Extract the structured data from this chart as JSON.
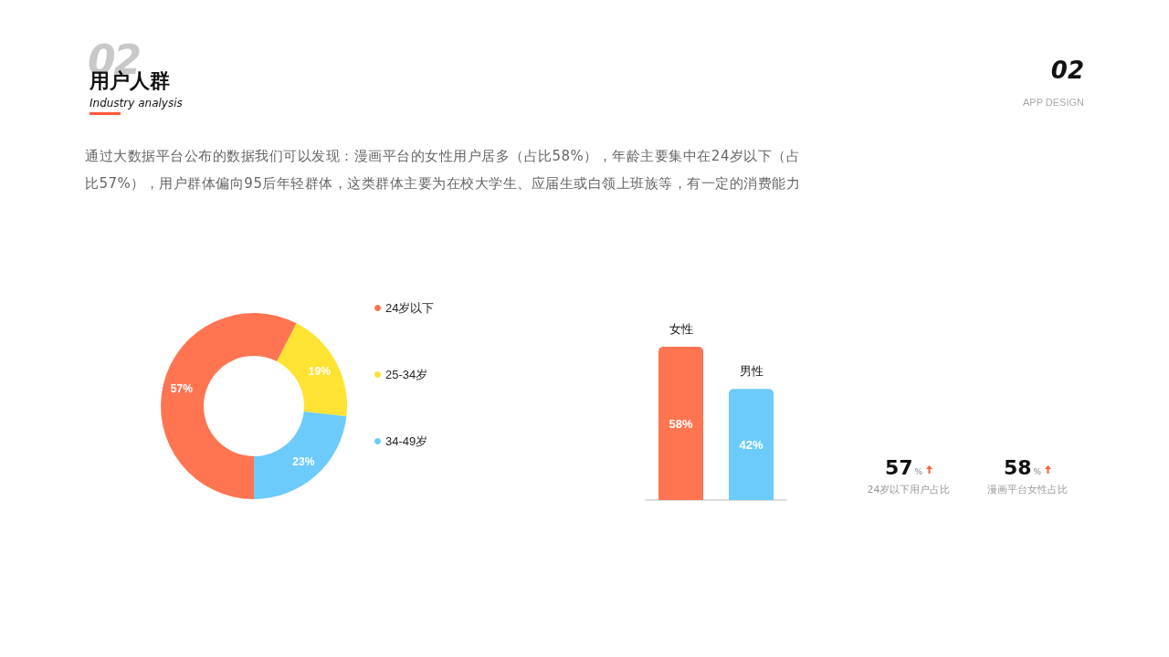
{
  "chart_data": [
    {
      "type": "donut",
      "title": "用户人群",
      "subtitle": "Industry analysis",
      "annotations": [
        "02",
        "02",
        "APP DESIGN",
        "通过大数据平台公布的数据我们可以发现：漫画平台的女性用户居多（占比58%），年龄主要集中在24岁以下（占比57%），用户群体偏向95后年轻群体，这类群体主要为在校大学生、应届生或白领上班族等，有一定的消费能力"
      ],
      "categories": [
        "24岁以下",
        "25-34岁",
        "34-49岁"
      ],
      "values": [
        57,
        19,
        23
      ],
      "value_labels": [
        "57%",
        "19%",
        "23%"
      ],
      "colors": [
        "#ff7552",
        "#ffe333",
        "#6ccbfa"
      ],
      "legend": "right"
    },
    {
      "type": "bar",
      "categories": [
        "女性",
        "男性"
      ],
      "values": [
        58,
        42
      ],
      "value_labels": [
        "58%",
        "42%"
      ],
      "colors": [
        "#ff7552",
        "#6ccbfa"
      ]
    },
    {
      "type": "other",
      "annotations": [
        "57%",
        "24岁以下用户占比",
        "58%",
        "漫画平台女性占比"
      ]
    }
  ]
}
